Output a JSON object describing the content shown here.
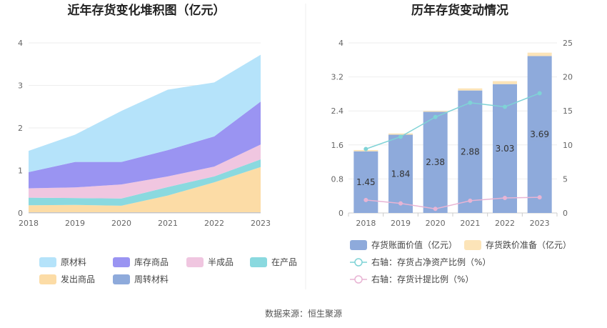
{
  "source_text": "数据来源：恒生聚源",
  "chart_data": [
    {
      "type": "area",
      "stacked": true,
      "title": "近年存货变化堆积图（亿元）",
      "categories": [
        "2018",
        "2019",
        "2020",
        "2021",
        "2022",
        "2023"
      ],
      "y_ticks": [
        "0",
        "1",
        "2",
        "3",
        "4"
      ],
      "ylim": [
        0,
        4
      ],
      "grid": true,
      "legend_position": "bottom",
      "series": [
        {
          "name": "周转材料",
          "color": "#8eaadb",
          "values": [
            0.01,
            0.01,
            0.01,
            0.01,
            0.01,
            0.01
          ]
        },
        {
          "name": "发出商品",
          "color": "#fcdca6",
          "values": [
            0.17,
            0.18,
            0.16,
            0.4,
            0.71,
            1.07
          ]
        },
        {
          "name": "在产品",
          "color": "#8ad9df",
          "values": [
            0.18,
            0.16,
            0.17,
            0.2,
            0.14,
            0.18
          ]
        },
        {
          "name": "半成品",
          "color": "#f0c6e0",
          "values": [
            0.22,
            0.25,
            0.33,
            0.25,
            0.23,
            0.35
          ]
        },
        {
          "name": "库存商品",
          "color": "#9a94f2",
          "values": [
            0.38,
            0.6,
            0.53,
            0.62,
            0.71,
            1.01
          ]
        },
        {
          "name": "原材料",
          "color": "#b5e3fa",
          "values": [
            0.5,
            0.64,
            1.2,
            1.42,
            1.27,
            1.1
          ]
        }
      ],
      "legend_order": [
        "原材料",
        "库存商品",
        "半成品",
        "在产品",
        "发出商品",
        "周转材料"
      ]
    },
    {
      "type": "bar",
      "title": "历年存货变动情况",
      "categories": [
        "2018",
        "2019",
        "2020",
        "2021",
        "2022",
        "2023"
      ],
      "y_left_ticks": [
        "0",
        "0.8",
        "1.6",
        "2.4",
        "3.2",
        "4"
      ],
      "y_right_ticks": [
        "0",
        "5",
        "10",
        "15",
        "20",
        "25"
      ],
      "ylim_left": [
        0,
        4
      ],
      "ylim_right": [
        0,
        25
      ],
      "grid": true,
      "legend_position": "bottom",
      "series": [
        {
          "name": "存货账面价值（亿元）",
          "kind": "bar",
          "axis": "left",
          "color": "#8eaadb",
          "values": [
            1.45,
            1.84,
            2.38,
            2.88,
            3.03,
            3.69
          ],
          "labels": [
            "1.45",
            "1.84",
            "2.38",
            "2.88",
            "3.03",
            "3.69"
          ]
        },
        {
          "name": "存货跌价准备（亿元）",
          "kind": "bar",
          "axis": "left",
          "color": "#fce4b8",
          "values": [
            0.03,
            0.03,
            0.02,
            0.05,
            0.07,
            0.08
          ]
        },
        {
          "name": "右轴：存货占净资产比例（%）",
          "kind": "line",
          "axis": "right",
          "color": "#7fd3d6",
          "values": [
            9.4,
            11.2,
            14.1,
            16.2,
            15.6,
            17.6
          ]
        },
        {
          "name": "右轴：存货计提比例（%）",
          "kind": "line",
          "axis": "right",
          "color": "#e8b4d4",
          "values": [
            1.9,
            1.4,
            0.6,
            1.8,
            2.2,
            2.3
          ]
        }
      ]
    }
  ]
}
